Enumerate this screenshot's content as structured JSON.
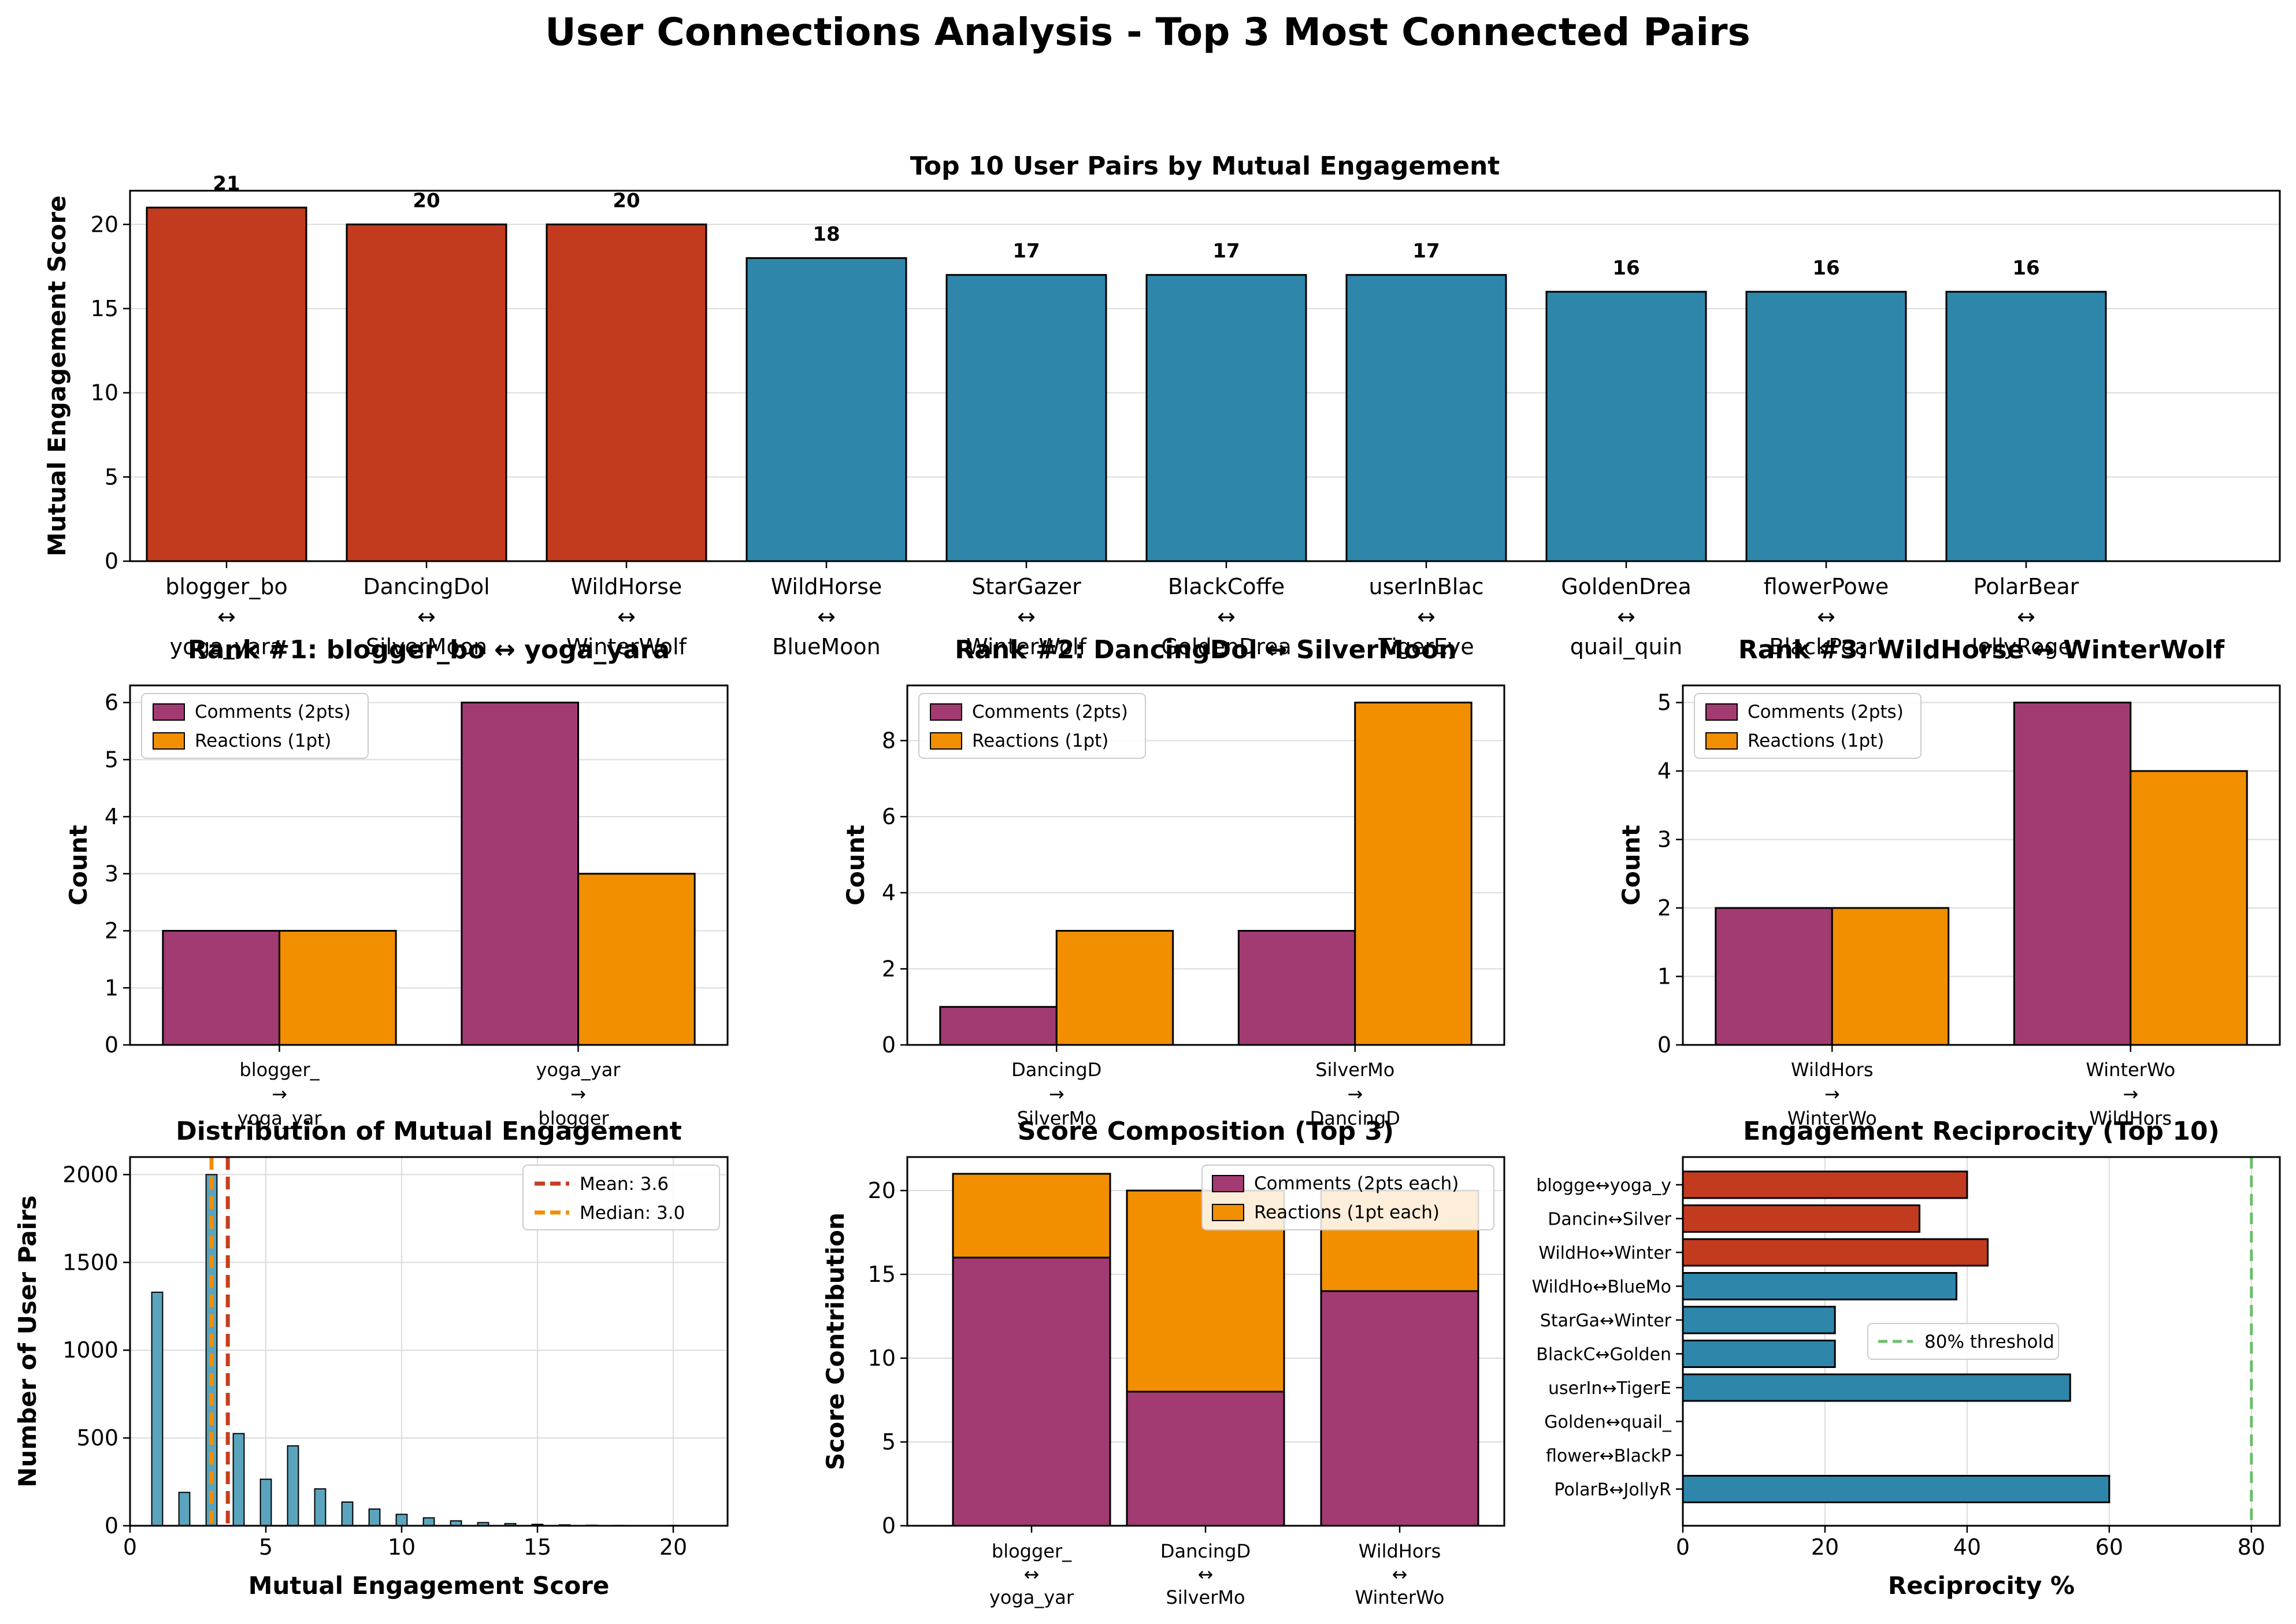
{
  "suptitle": "User Connections Analysis - Top 3 Most Connected Pairs",
  "colors": {
    "top3": "#C23B1E",
    "rest": "#2E86AB",
    "comments": "#A23B72",
    "reactions": "#F18F01",
    "hist": "#5BA4BE",
    "mean": "#C73E1D",
    "median": "#F18F01",
    "threshold": "#6BBF6B"
  },
  "chart_data": [
    {
      "id": "top10",
      "type": "bar",
      "title": "Top 10 User Pairs by Mutual Engagement",
      "ylabel": "Mutual Engagement Score",
      "xlabel": "",
      "ylim": [
        0,
        22
      ],
      "yticks": [
        0,
        5,
        10,
        15,
        20
      ],
      "grid": "y",
      "categories": [
        [
          "blogger_bo",
          "↔",
          "yoga_yara"
        ],
        [
          "DancingDol",
          "↔",
          "SilverMoon"
        ],
        [
          "WildHorse",
          "↔",
          "WinterWolf"
        ],
        [
          "WildHorse",
          "↔",
          "BlueMoon"
        ],
        [
          "StarGazer",
          "↔",
          "WinterWolf"
        ],
        [
          "BlackCoffe",
          "↔",
          "GoldenDrea"
        ],
        [
          "userInBlac",
          "↔",
          "TigerEye"
        ],
        [
          "GoldenDrea",
          "↔",
          "quail_quin"
        ],
        [
          "flowerPowe",
          "↔",
          "BlackPearl"
        ],
        [
          "PolarBear",
          "↔",
          "JollyRoger"
        ]
      ],
      "values": [
        21,
        20,
        20,
        18,
        17,
        17,
        17,
        16,
        16,
        16
      ],
      "highlight_top": 3
    },
    {
      "id": "rank1",
      "type": "bar",
      "title": "Rank #1: blogger_bo ↔ yoga_yara",
      "ylabel": "Count",
      "ylim": [
        0,
        6.3
      ],
      "yticks": [
        0,
        1,
        2,
        3,
        4,
        5,
        6
      ],
      "grid": "y",
      "legend": "top-left",
      "categories": [
        [
          "blogger_",
          "→",
          "yoga_yar"
        ],
        [
          "yoga_yar",
          "→",
          "blogger_"
        ]
      ],
      "series": [
        {
          "name": "Comments (2pts)",
          "values": [
            2,
            6
          ]
        },
        {
          "name": "Reactions (1pt)",
          "values": [
            2,
            3
          ]
        }
      ]
    },
    {
      "id": "rank2",
      "type": "bar",
      "title": "Rank #2: DancingDol ↔ SilverMoon",
      "ylabel": "Count",
      "ylim": [
        0,
        9.45
      ],
      "yticks": [
        0,
        2,
        4,
        6,
        8
      ],
      "grid": "y",
      "legend": "top-left",
      "categories": [
        [
          "DancingD",
          "→",
          "SilverMo"
        ],
        [
          "SilverMo",
          "→",
          "DancingD"
        ]
      ],
      "series": [
        {
          "name": "Comments (2pts)",
          "values": [
            1,
            3
          ]
        },
        {
          "name": "Reactions (1pt)",
          "values": [
            3,
            9
          ]
        }
      ]
    },
    {
      "id": "rank3",
      "type": "bar",
      "title": "Rank #3: WildHorse ↔ WinterWolf",
      "ylabel": "Count",
      "ylim": [
        0,
        5.25
      ],
      "yticks": [
        0,
        1,
        2,
        3,
        4,
        5
      ],
      "grid": "y",
      "legend": "top-left",
      "categories": [
        [
          "WildHors",
          "→",
          "WinterWo"
        ],
        [
          "WinterWo",
          "→",
          "WildHors"
        ]
      ],
      "series": [
        {
          "name": "Comments (2pts)",
          "values": [
            2,
            5
          ]
        },
        {
          "name": "Reactions (1pt)",
          "values": [
            2,
            4
          ]
        }
      ]
    },
    {
      "id": "dist",
      "type": "bar",
      "subtype": "histogram",
      "title": "Distribution of Mutual Engagement",
      "xlabel": "Mutual Engagement Score",
      "ylabel": "Number of User Pairs",
      "xlim": [
        0,
        22
      ],
      "ylim": [
        0,
        2100
      ],
      "xticks": [
        0,
        5,
        10,
        15,
        20
      ],
      "yticks": [
        0,
        500,
        1000,
        1500,
        2000
      ],
      "grid": "both",
      "bin_width": 0.4,
      "x": [
        1,
        2,
        3,
        4,
        5,
        6,
        7,
        8,
        9,
        10,
        11,
        12,
        13,
        14,
        15,
        16,
        17,
        18,
        19,
        20,
        21
      ],
      "values": [
        1330,
        190,
        2000,
        525,
        265,
        455,
        210,
        135,
        95,
        65,
        45,
        28,
        18,
        12,
        8,
        5,
        3,
        2,
        1,
        2,
        1
      ],
      "mean": 3.6,
      "median": 3.0,
      "legend": "top-right",
      "lines": [
        {
          "name": "Mean: 3.6",
          "value": 3.6
        },
        {
          "name": "Median: 3.0",
          "value": 3.0
        }
      ]
    },
    {
      "id": "composition",
      "type": "bar",
      "subtype": "stacked",
      "title": "Score Composition (Top 3)",
      "ylabel": "Score Contribution",
      "ylim": [
        0,
        22
      ],
      "yticks": [
        0,
        5,
        10,
        15,
        20
      ],
      "grid": "y",
      "legend": "top-right",
      "categories": [
        [
          "blogger_",
          "↔",
          "yoga_yar"
        ],
        [
          "DancingD",
          "↔",
          "SilverMo"
        ],
        [
          "WildHors",
          "↔",
          "WinterWo"
        ]
      ],
      "series": [
        {
          "name": "Comments (2pts each)",
          "values": [
            16,
            8,
            14
          ]
        },
        {
          "name": "Reactions (1pt each)",
          "values": [
            5,
            12,
            6
          ]
        }
      ]
    },
    {
      "id": "reciprocity",
      "type": "bar",
      "subtype": "horizontal",
      "title": "Engagement Reciprocity (Top 10)",
      "xlabel": "Reciprocity %",
      "xlim": [
        0,
        84
      ],
      "xticks": [
        0,
        20,
        40,
        60,
        80
      ],
      "grid": "x",
      "categories": [
        "blogge↔yoga_y",
        "Dancin↔Silver",
        "WildHo↔Winter",
        "WildHo↔BlueMo",
        "StarGa↔Winter",
        "BlackC↔Golden",
        "userIn↔TigerE",
        "Golden↔quail_",
        "flower↔BlackP",
        "PolarB↔JollyR"
      ],
      "values": [
        40,
        33.3,
        42.9,
        38.5,
        21.4,
        21.4,
        54.5,
        0,
        0,
        60
      ],
      "highlight_top": 3,
      "threshold": 80,
      "legend": "center-right",
      "threshold_label": "80% threshold"
    }
  ]
}
